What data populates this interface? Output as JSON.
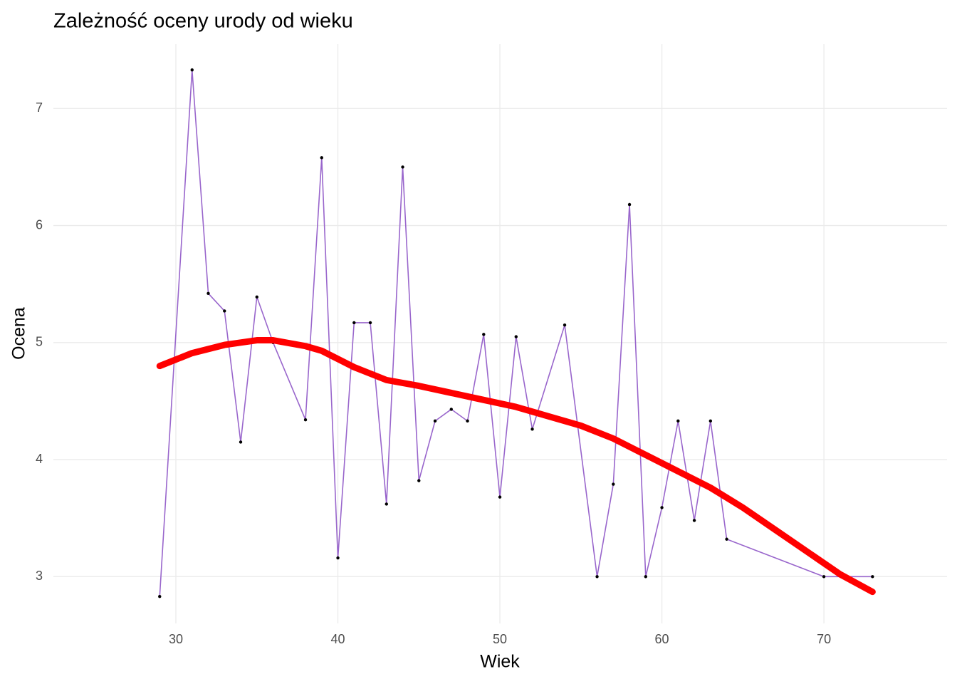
{
  "chart_data": {
    "type": "line",
    "title": "Zależność oceny urody od wieku",
    "x_label": "Wiek",
    "y_label": "Ocena",
    "xlim": [
      22.44,
      77.6
    ],
    "ylim": [
      2.6,
      7.55
    ],
    "xticks": [
      30,
      40,
      50,
      60,
      70
    ],
    "yticks": [
      3,
      4,
      5,
      6,
      7
    ],
    "grid": true,
    "series": [
      {
        "color": "#9966cc",
        "point_color": "#000000",
        "markers": true,
        "line_width": 1.6,
        "x": [
          29,
          31,
          32,
          33,
          34,
          35,
          36,
          38,
          39,
          40,
          41,
          42,
          43,
          44,
          45,
          46,
          47,
          48,
          49,
          50,
          51,
          52,
          54,
          56,
          57,
          58,
          59,
          60,
          61,
          62,
          63,
          64,
          70,
          73
        ],
        "values": [
          2.83,
          7.33,
          5.42,
          5.27,
          4.15,
          5.39,
          5.0,
          4.34,
          6.58,
          3.16,
          5.17,
          5.17,
          3.62,
          6.5,
          3.82,
          4.33,
          4.43,
          4.33,
          5.07,
          3.68,
          5.05,
          4.26,
          5.15,
          3.0,
          3.79,
          6.18,
          3.0,
          3.59,
          4.33,
          3.48,
          4.33,
          3.32,
          3.0,
          3.0
        ]
      },
      {
        "color": "#ff0000",
        "markers": false,
        "line_width": 9,
        "x": [
          29,
          31,
          33,
          35,
          36,
          38,
          39,
          41,
          43,
          45,
          47,
          49,
          51,
          53,
          55,
          57,
          59,
          61,
          63,
          65,
          67,
          69,
          71,
          73
        ],
        "values": [
          4.8,
          4.91,
          4.98,
          5.02,
          5.02,
          4.97,
          4.93,
          4.79,
          4.68,
          4.63,
          4.57,
          4.51,
          4.45,
          4.37,
          4.29,
          4.18,
          4.04,
          3.9,
          3.76,
          3.59,
          3.4,
          3.21,
          3.02,
          2.87
        ]
      }
    ]
  }
}
